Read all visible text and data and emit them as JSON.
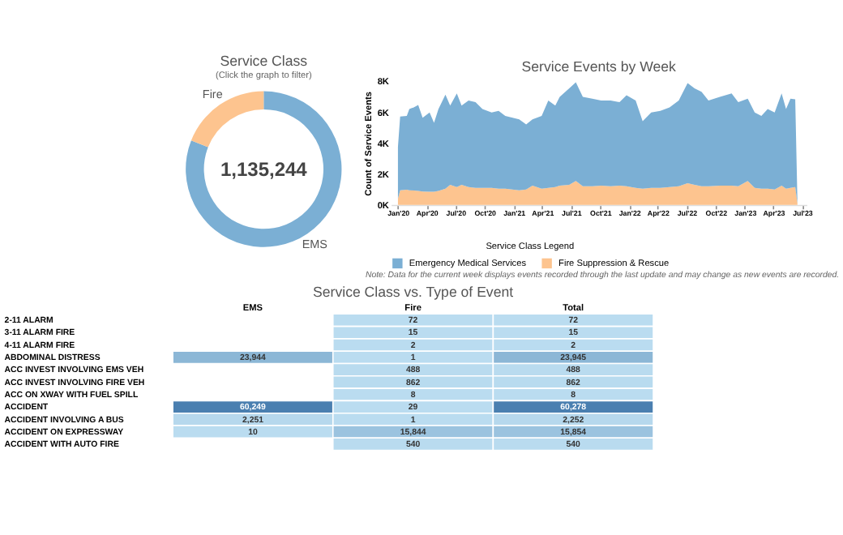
{
  "chart_data": [
    {
      "type": "donut",
      "title": "Service Class",
      "subtitle": "(Click the graph to filter)",
      "categories": [
        "EMS",
        "Fire"
      ],
      "values": [
        81,
        19
      ],
      "colors": [
        "#7bafd4",
        "#fdc48f"
      ],
      "annotations": [
        "1,135,244"
      ]
    },
    {
      "type": "area",
      "title": "Service Events by Week",
      "ylabel": "Count of Service Events",
      "stacked": true,
      "legend": "bottom",
      "legend_title": "Service Class Legend",
      "grid": false,
      "x": [
        "2020-01-01",
        "2020-01-08",
        "2020-01-29",
        "2020-02-06",
        "2020-02-20",
        "2020-03-05",
        "2020-03-19",
        "2020-04-10",
        "2020-04-24",
        "2020-05-08",
        "2020-05-30",
        "2020-06-14",
        "2020-07-05",
        "2020-07-20",
        "2020-08-11",
        "2020-09-02",
        "2020-09-24",
        "2020-10-23",
        "2020-11-14",
        "2020-12-05",
        "2021-01-18",
        "2021-02-09",
        "2021-03-01",
        "2021-03-30",
        "2021-04-20",
        "2021-05-12",
        "2021-05-26",
        "2021-06-25",
        "2021-07-16",
        "2021-08-07",
        "2021-09-06",
        "2021-10-04",
        "2021-11-03",
        "2021-12-01",
        "2021-12-23",
        "2022-01-21",
        "2022-02-12",
        "2022-03-11",
        "2022-04-09",
        "2022-05-08",
        "2022-06-06",
        "2022-07-04",
        "2022-07-26",
        "2022-08-17",
        "2022-09-08",
        "2022-10-14",
        "2022-11-20",
        "2022-12-11",
        "2023-01-10",
        "2023-02-01",
        "2023-02-22",
        "2023-03-14",
        "2023-04-05",
        "2023-04-27",
        "2023-05-11",
        "2023-05-25",
        "2023-06-09",
        "2023-06-16"
      ],
      "series": [
        {
          "name": "Fire Suppression & Rescue",
          "color": "#fdc48f",
          "values": [
            400,
            950,
            980,
            950,
            930,
            900,
            870,
            850,
            850,
            900,
            1050,
            1300,
            1150,
            1300,
            1150,
            1100,
            1100,
            1100,
            1050,
            1050,
            950,
            1000,
            1250,
            1050,
            1100,
            1150,
            1250,
            1300,
            1550,
            1200,
            1200,
            1250,
            1200,
            1250,
            1200,
            1100,
            1050,
            1100,
            1100,
            1150,
            1200,
            1400,
            1300,
            1200,
            1200,
            1250,
            1250,
            1200,
            1550,
            1100,
            1050,
            1050,
            1000,
            1250,
            1050,
            1100,
            1150,
            100
          ]
        },
        {
          "name": "Emergency Medical Services",
          "color": "#7bafd4",
          "values": [
            3350,
            4770,
            4785,
            5260,
            5390,
            5580,
            4780,
            5140,
            4470,
            5310,
            6100,
            5135,
            6070,
            5135,
            5620,
            5560,
            5110,
            4890,
            5050,
            4715,
            4590,
            4210,
            4290,
            4715,
            5670,
            5285,
            5750,
            6250,
            6400,
            5800,
            5680,
            5520,
            5570,
            5410,
            5900,
            5670,
            4380,
            4890,
            5000,
            5170,
            5570,
            6490,
            6250,
            6130,
            5570,
            5750,
            5970,
            5460,
            5330,
            4890,
            4715,
            5160,
            4990,
            5970,
            5160,
            5780,
            5690,
            50
          ]
        }
      ],
      "xlim": [
        "2019-12-10",
        "2023-07-15"
      ],
      "xticks": [
        {
          "value": "2020-01-01",
          "label": "Jan'20"
        },
        {
          "value": "2020-04-01",
          "label": "Apr'20"
        },
        {
          "value": "2020-07-01",
          "label": "Jul'20"
        },
        {
          "value": "2020-10-01",
          "label": "Oct'20"
        },
        {
          "value": "2021-01-01",
          "label": "Jan'21"
        },
        {
          "value": "2021-04-01",
          "label": "Apr'21"
        },
        {
          "value": "2021-07-01",
          "label": "Jul'21"
        },
        {
          "value": "2021-10-01",
          "label": "Oct'21"
        },
        {
          "value": "2022-01-01",
          "label": "Jan'22"
        },
        {
          "value": "2022-04-01",
          "label": "Apr'22"
        },
        {
          "value": "2022-07-01",
          "label": "Jul'22"
        },
        {
          "value": "2022-10-01",
          "label": "Oct'22"
        },
        {
          "value": "2023-01-01",
          "label": "Jan'23"
        },
        {
          "value": "2023-04-01",
          "label": "Apr'23"
        },
        {
          "value": "2023-07-01",
          "label": "Jul'23"
        }
      ],
      "ylim": [
        0,
        8000
      ],
      "yticks": [
        {
          "value": 0,
          "label": "0K"
        },
        {
          "value": 2000,
          "label": "2K"
        },
        {
          "value": 4000,
          "label": "4K"
        },
        {
          "value": 6000,
          "label": "6K"
        },
        {
          "value": 8000,
          "label": "8K"
        }
      ],
      "annotations": [
        "Note: Data for the current week displays events recorded through the last update and may change as new events are recorded."
      ]
    },
    {
      "type": "heatmap",
      "title": "Service Class vs. Type of Event",
      "categories": [
        "EMS",
        "Fire",
        "Total"
      ],
      "y_categories": [
        "2-11 ALARM",
        "3-11 ALARM FIRE",
        "4-11 ALARM FIRE",
        "ABDOMINAL DISTRESS",
        "ACC INVEST INVOLVING EMS VEH",
        "ACC INVEST INVOLVING FIRE VEH",
        "ACC ON XWAY WITH FUEL SPILL",
        "ACCIDENT",
        "ACCIDENT INVOLVING A BUS",
        "ACCIDENT ON EXPRESSWAY",
        "ACCIDENT WITH AUTO FIRE"
      ],
      "cells": [
        [
          null,
          72,
          72
        ],
        [
          null,
          15,
          15
        ],
        [
          null,
          2,
          2
        ],
        [
          23944,
          1,
          23945
        ],
        [
          null,
          488,
          488
        ],
        [
          null,
          862,
          862
        ],
        [
          null,
          8,
          8
        ],
        [
          60249,
          29,
          60278
        ],
        [
          2251,
          1,
          2252
        ],
        [
          10,
          15844,
          15854
        ],
        [
          null,
          540,
          540
        ]
      ],
      "data_labels": true,
      "cell_labels": [
        [
          null,
          "72",
          "72"
        ],
        [
          null,
          "15",
          "15"
        ],
        [
          null,
          "2",
          "2"
        ],
        [
          "23,944",
          "1",
          "23,945"
        ],
        [
          null,
          "488",
          "488"
        ],
        [
          null,
          "862",
          "862"
        ],
        [
          null,
          "8",
          "8"
        ],
        [
          "60,249",
          "29",
          "60,278"
        ],
        [
          "2,251",
          "1",
          "2,252"
        ],
        [
          "10",
          "15,844",
          "15,854"
        ],
        [
          null,
          "540",
          "540"
        ]
      ]
    }
  ]
}
